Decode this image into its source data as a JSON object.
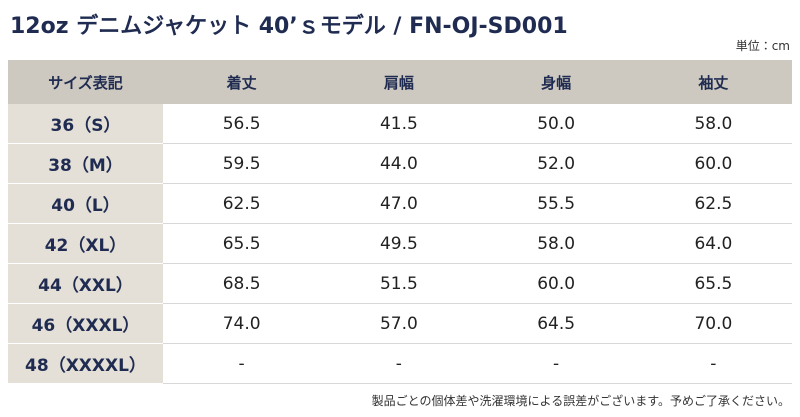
{
  "header": {
    "title": "12oz デニムジャケット 40’ｓモデル / FN-OJ-SD001",
    "unit": "単位：cm"
  },
  "table": {
    "columns": [
      "サイズ表記",
      "着丈",
      "肩幅",
      "身幅",
      "袖丈"
    ],
    "rows": [
      [
        "36（S）",
        "56.5",
        "41.5",
        "50.0",
        "58.0"
      ],
      [
        "38（M）",
        "59.5",
        "44.0",
        "52.0",
        "60.0"
      ],
      [
        "40（L）",
        "62.5",
        "47.0",
        "55.5",
        "62.5"
      ],
      [
        "42（XL）",
        "65.5",
        "49.5",
        "58.0",
        "64.0"
      ],
      [
        "44（XXL）",
        "68.5",
        "51.5",
        "60.0",
        "65.5"
      ],
      [
        "46（XXXL）",
        "74.0",
        "57.0",
        "64.5",
        "70.0"
      ],
      [
        "48（XXXXL）",
        "-",
        "-",
        "-",
        "-"
      ]
    ]
  },
  "footnote": "製品ごとの個体差や洗濯環境による誤差がございます。予めご了承ください。"
}
